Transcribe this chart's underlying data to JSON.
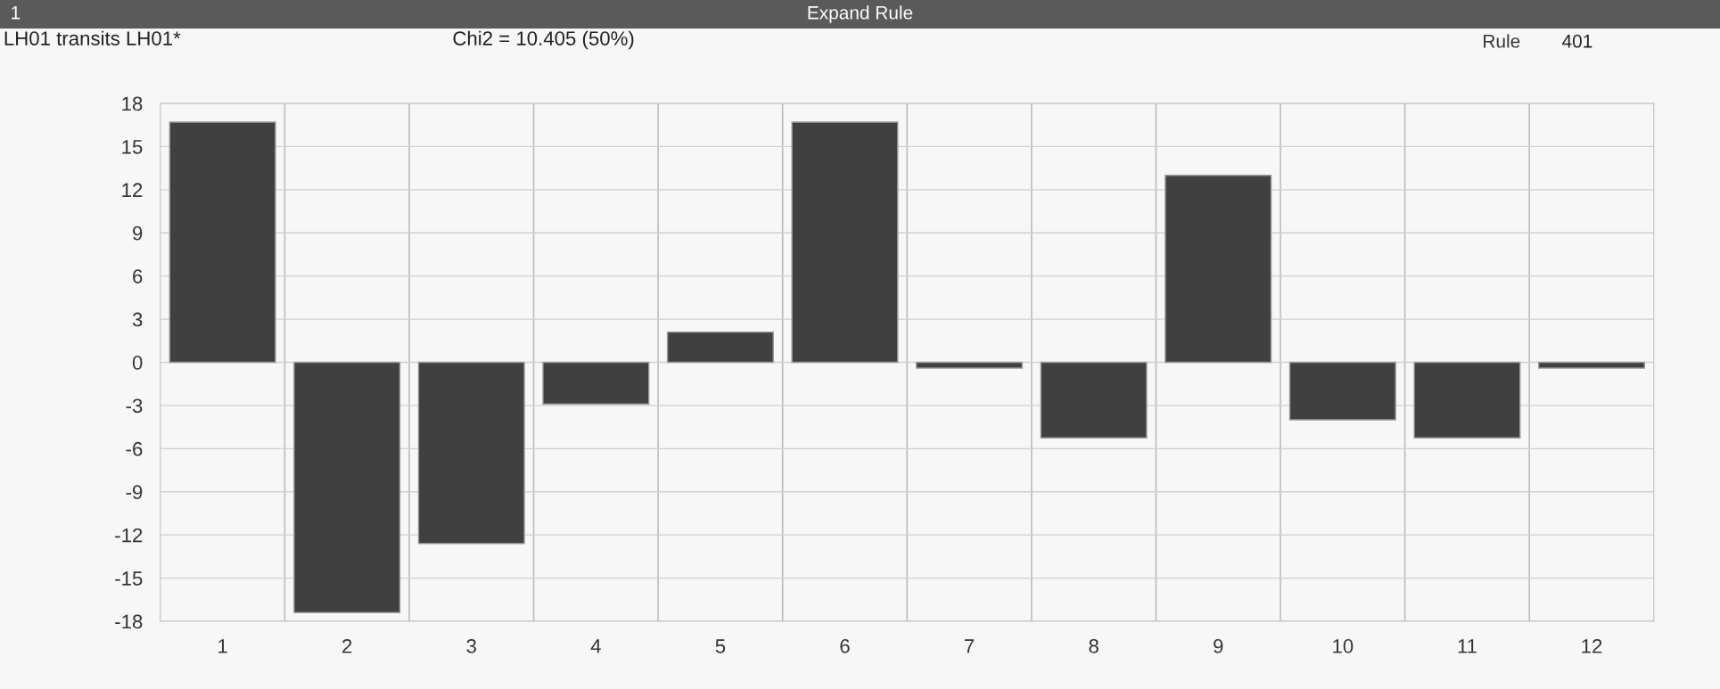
{
  "chart_data": {
    "type": "bar",
    "title": "LH01 transits LH01*",
    "subtitle": "Chi2 = 10.405 (50%)",
    "annotations": [
      "Expand Rule",
      "1",
      "Rule",
      "401"
    ],
    "categories": [
      "1",
      "2",
      "3",
      "4",
      "5",
      "6",
      "7",
      "8",
      "9",
      "10",
      "11",
      "12"
    ],
    "values": [
      16.7,
      -17.4,
      -12.6,
      -2.9,
      2.1,
      16.7,
      -0.4,
      -5.25,
      13.0,
      -4.0,
      -5.25,
      -0.4
    ],
    "color": "#404040",
    "ylim": [
      -18,
      18
    ],
    "yticks": [
      -18,
      -15,
      -12,
      -9,
      -6,
      -3,
      0,
      3,
      6,
      9,
      12,
      15,
      18
    ],
    "grid": true
  }
}
